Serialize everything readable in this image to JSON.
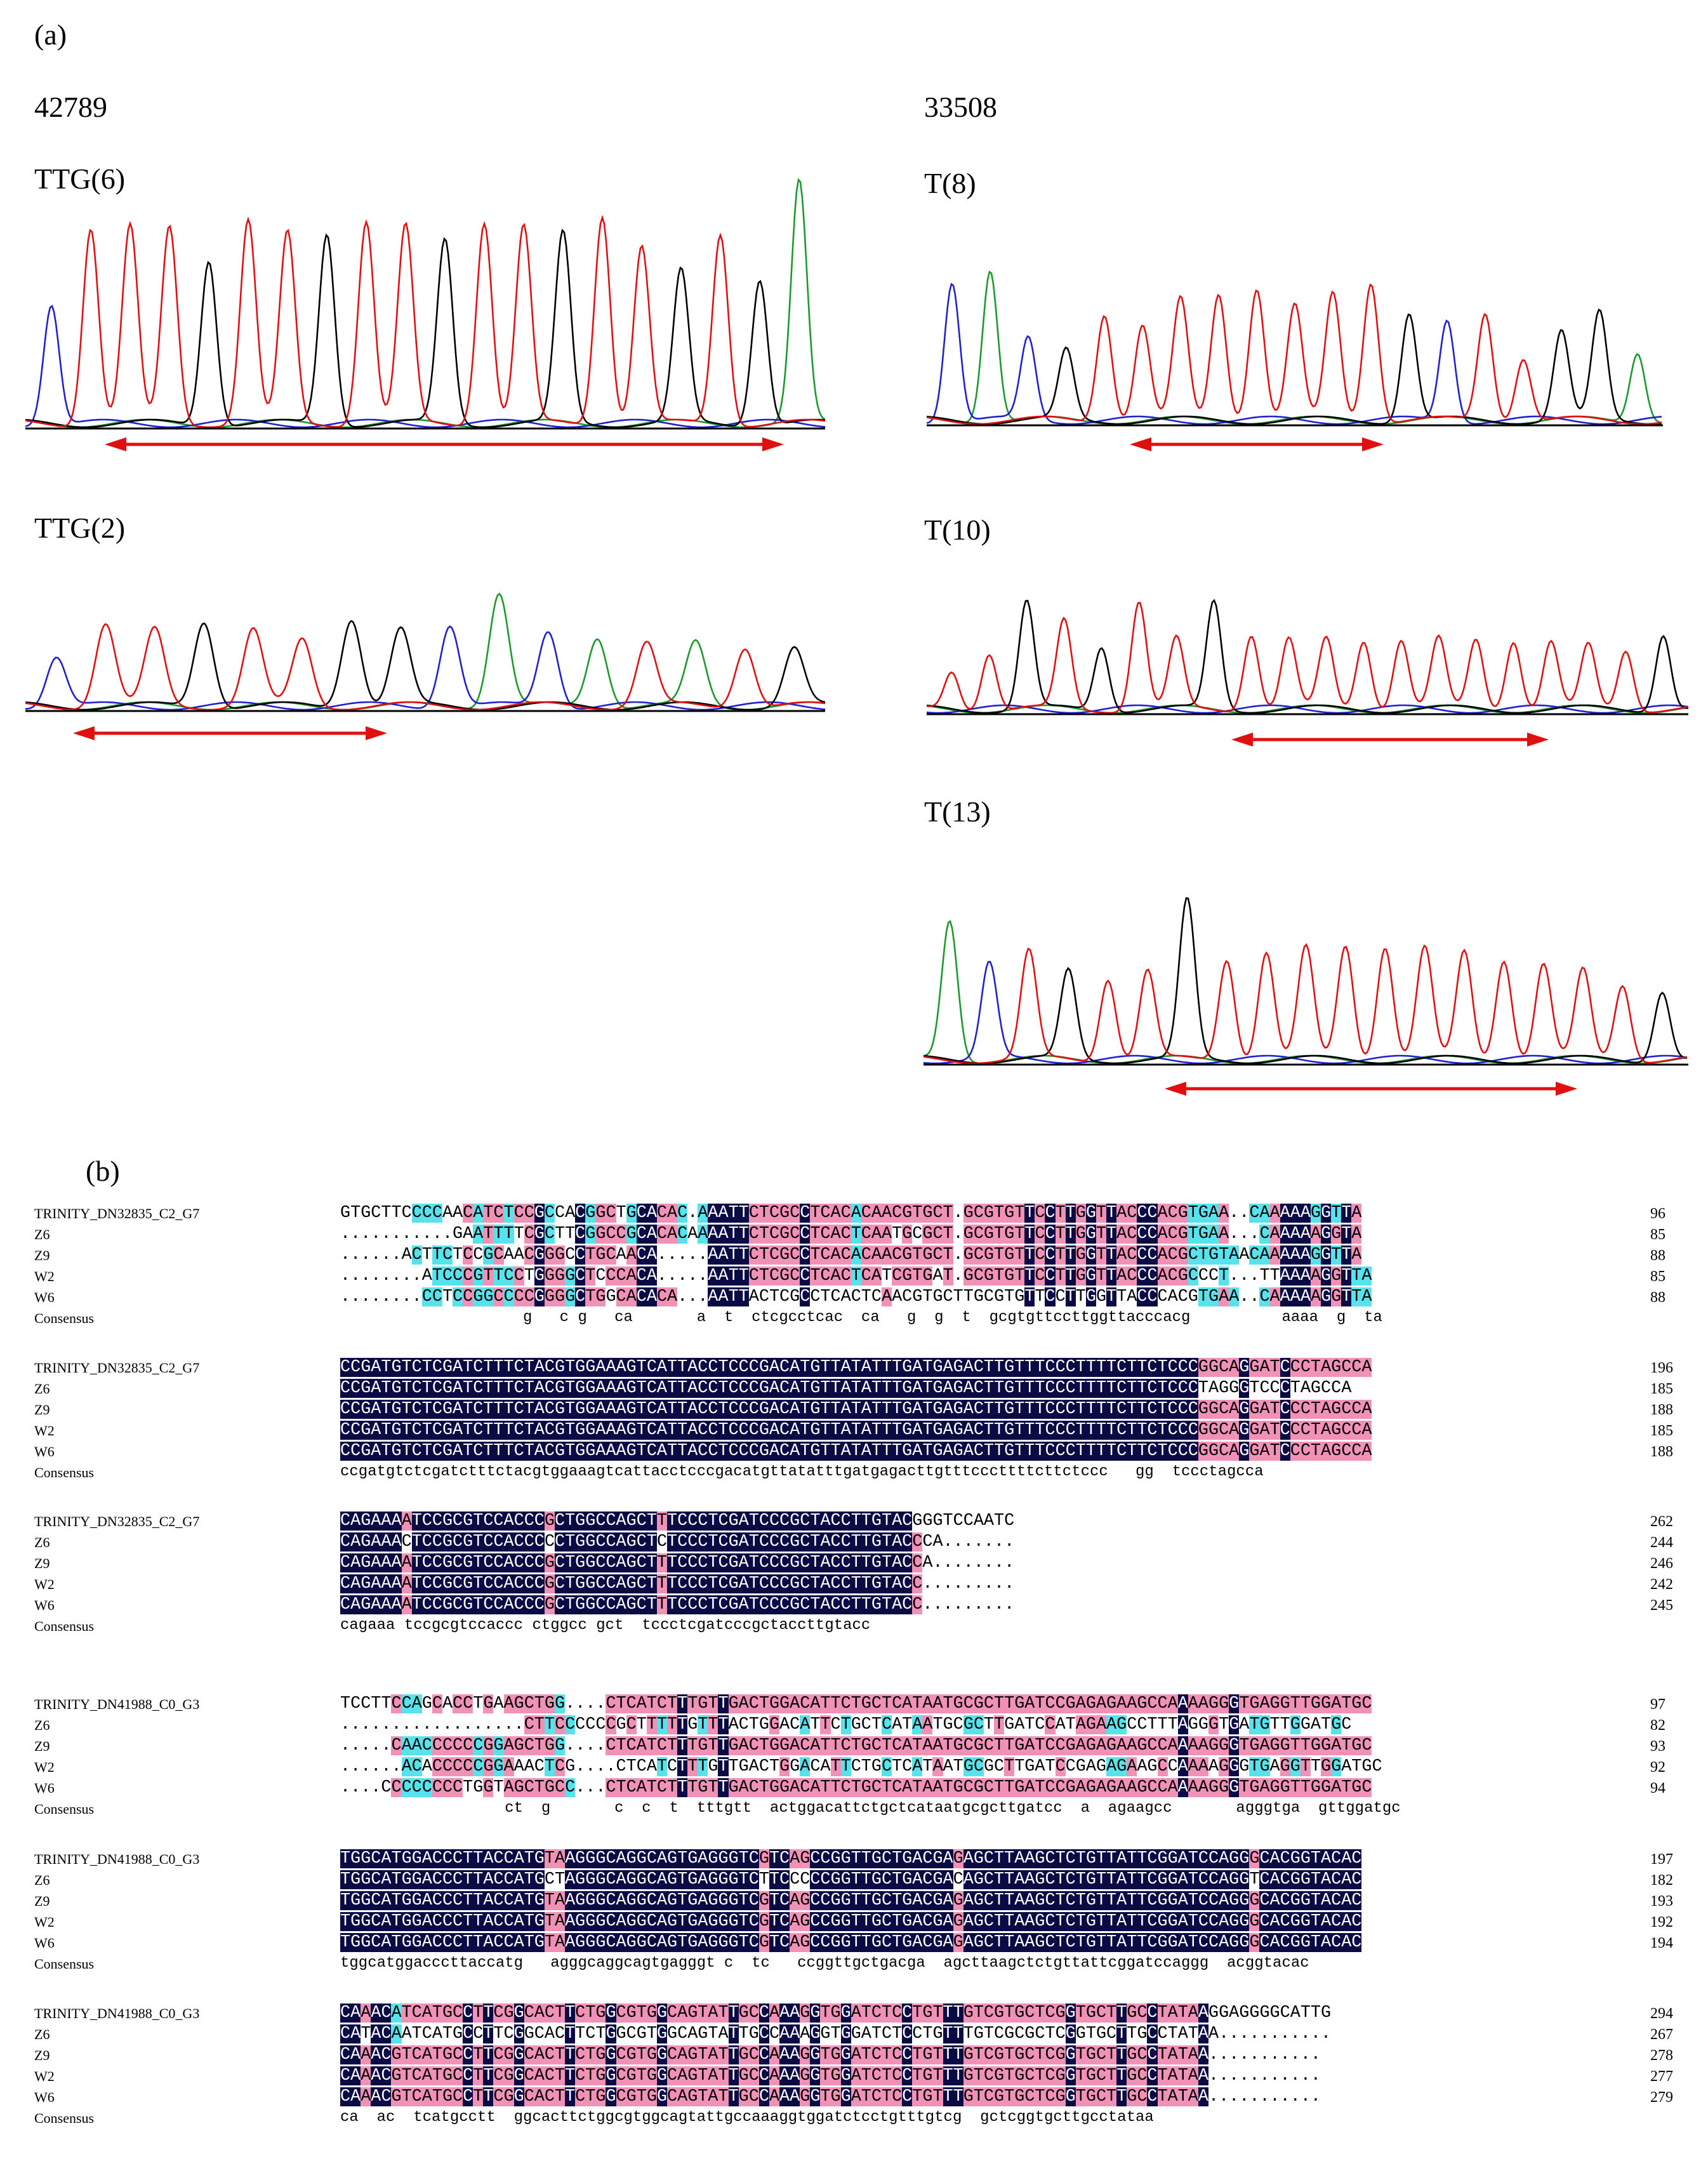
{
  "panel_a": {
    "label": "(a)",
    "left_id": "42789",
    "right_id": "33508",
    "traces": [
      {
        "label": "TTG(6)"
      },
      {
        "label": "TTG(2)"
      },
      {
        "label": "T(8)"
      },
      {
        "label": "T(10)"
      },
      {
        "label": "T(13)"
      }
    ]
  },
  "panel_b": {
    "label": "(b)",
    "blocks": [
      {
        "rows": [
          {
            "name": "TRINITY_DN32835_C2_G7",
            "seq": "GTGCTTCCCCAACATCTCCGCCACGGCTGCACAC.AAATTCTCGCCTCACACAACGTGCT.GCGTGTTCCTTGGTTACCCACGTGAA..CAAAAAGGTTA",
            "num": "96"
          },
          {
            "name": "Z6",
            "seq": "...........GAATTTTCGCTTCGGCCGCACACAAAATTCTCGCCTCACTCAATGCGCT.GCGTGTTCCTTGGTTACCCACGTGAA...CAAAAAGGTA",
            "num": "85"
          },
          {
            "name": "Z9",
            "seq": "......ACTTCTCCGCAACGGGCCTGCAACA.....AATTCTCGCCTCACACAACGTGCT.GCGTGTTCCTTGGTTACCCACGCTGTAACAAAAAGGTTA",
            "num": "88"
          },
          {
            "name": "W2",
            "seq": "........ATCCCGTTCCTGGGGCTCCCACA.....AATTCTCGCCTCACTCATCGTGAT.GCGTGTTCCTTGGTTACCCACGCCCT...TTAAAAGGTTA",
            "num": "85"
          },
          {
            "name": "W6",
            "seq": "........CCTCCGGCCCCGGGGCTGGCACACA...AATTACTCGCCTCACTCAACGTGCTTGCGTGTTCCTTGGTTACCCACGTGAA..CAAAAAGGTTA",
            "num": "88"
          },
          {
            "name": "Consensus",
            "seq": "                    g   c g   ca       a  t  ctcgcctcac  ca   g  g  t  gcgtgttccttggttacccacg          aaaa  g  ta",
            "num": ""
          }
        ]
      },
      {
        "rows": [
          {
            "name": "TRINITY_DN32835_C2_G7",
            "seq": "CCGATGTCTCGATCTTTCTACGTGGAAAGTCATTACCTCCCGACATGTTATATTTGATGAGACTTGTTTCCCTTTTCTTCTCCCGGCAGGATCCCTAGCCA",
            "num": "196"
          },
          {
            "name": "Z6",
            "seq": "CCGATGTCTCGATCTTTCTACGTGGAAAGTCATTACCTCCCGACATGTTATATTTGATGAGACTTGTTTCCCTTTTCTTCTCCCTAGGGTCCCTAGCCA",
            "num": "185"
          },
          {
            "name": "Z9",
            "seq": "CCGATGTCTCGATCTTTCTACGTGGAAAGTCATTACCTCCCGACATGTTATATTTGATGAGACTTGTTTCCCTTTTCTTCTCCCGGCAGGATCCCTAGCCA",
            "num": "188"
          },
          {
            "name": "W2",
            "seq": "CCGATGTCTCGATCTTTCTACGTGGAAAGTCATTACCTCCCGACATGTTATATTTGATGAGACTTGTTTCCCTTTTCTTCTCCCGGCAGGATCCCTAGCCA",
            "num": "185"
          },
          {
            "name": "W6",
            "seq": "CCGATGTCTCGATCTTTCTACGTGGAAAGTCATTACCTCCCGACATGTTATATTTGATGAGACTTGTTTCCCTTTTCTTCTCCCGGCAGGATCCCTAGCCA",
            "num": "188"
          },
          {
            "name": "Consensus",
            "seq": "ccgatgtctcgatctttctacgtggaaagtcattacctcccgacatgttatatttgatgagacttgtttcccttttcttctccc   gg  tccctagcca",
            "num": ""
          }
        ]
      },
      {
        "rows": [
          {
            "name": "TRINITY_DN32835_C2_G7",
            "seq": "CAGAAAATCCGCGTCCACCCGCTGGCCAGCTTTCCCTCGATCCCGCTACCTTGTACGGGTCCAATC",
            "num": "262"
          },
          {
            "name": "Z6",
            "seq": "CAGAAACTCCGCGTCCACCCCCTGGCCAGCTCTCCCTCGATCCCGCTACCTTGTACCCA.......",
            "num": "244"
          },
          {
            "name": "Z9",
            "seq": "CAGAAAATCCGCGTCCACCCGCTGGCCAGCTTTCCCTCGATCCCGCTACCTTGTACCA........",
            "num": "246"
          },
          {
            "name": "W2",
            "seq": "CAGAAAATCCGCGTCCACCCGCTGGCCAGCTTTCCCTCGATCCCGCTACCTTGTACC.........",
            "num": "242"
          },
          {
            "name": "W6",
            "seq": "CAGAAAATCCGCGTCCACCCGCTGGCCAGCTTTCCCTCGATCCCGCTACCTTGTACC.........",
            "num": "245"
          },
          {
            "name": "Consensus",
            "seq": "cagaaa tccgcgtccaccc ctggcc gct  tccctcgatcccgctaccttgtacc",
            "num": ""
          }
        ]
      },
      {
        "rows": [
          {
            "name": "TRINITY_DN41988_C0_G3",
            "seq": "TCCTTCCAGCACCTGAAGCTGG....CTCATCTTTGTTGACTGGACATTCTGCTCATAATGCGCTTGATCCGAGAGAAGCCAAAAGGGTGAGGTTGGATGC",
            "num": "97"
          },
          {
            "name": "Z6",
            "seq": "..................CTTCCCCCCGCTTTTTGTTTACTGGACATTCTGCTCATAATGCGCTTGATCCATAGAAGCCTTTAGGGTGATGTTGGATGC",
            "num": "82"
          },
          {
            "name": "Z9",
            "seq": ".....CAACCCCCCGGAGCTGG....CTCATCTTTGTTGACTGGACATTCTGCTCATAATGCGCTTGATCCGAGAGAAGCCAAAAGGGTGAGGTTGGATGC",
            "num": "93"
          },
          {
            "name": "W2",
            "seq": "......ACACCCCCGGAAACTCG....CTCATCTTTGTTGACTGGACATTCTGCTCATAATGCGCTTGATCCGAGAGAAGCCAAAAGGGTGAGGTTGGATGC",
            "num": "92"
          },
          {
            "name": "W6",
            "seq": "....CCCCCCCCTGGTAGCTGCC...CTCATCTTTGTTGACTGGACATTCTGCTCATAATGCGCTTGATCCGAGAGAAGCCAAAAGGGTGAGGTTGGATGC",
            "num": "94"
          },
          {
            "name": "Consensus",
            "seq": "                  ct  g       c  c  t  tttgtt  actggacattctgctcataatgcgcttgatcc  a  agaagcc       agggtga  gttggatgc",
            "num": ""
          }
        ]
      },
      {
        "rows": [
          {
            "name": "TRINITY_DN41988_C0_G3",
            "seq": "TGGCATGGACCCTTACCATGTAAGGGCAGGCAGTGAGGGTCGTCAGCCGGTTGCTGACGAGAGCTTAAGCTCTGTTATTCGGATCCAGGGCACGGTACAC",
            "num": "197"
          },
          {
            "name": "Z6",
            "seq": "TGGCATGGACCCTTACCATGCTAGGGCAGGCAGTGAGGGTCTTCCCCCGGTTGCTGACGACAGCTTAAGCTCTGTTATTCGGATCCAGGTCACGGTACAC",
            "num": "182"
          },
          {
            "name": "Z9",
            "seq": "TGGCATGGACCCTTACCATGTAAGGGCAGGCAGTGAGGGTCGTCAGCCGGTTGCTGACGAGAGCTTAAGCTCTGTTATTCGGATCCAGGGCACGGTACAC",
            "num": "193"
          },
          {
            "name": "W2",
            "seq": "TGGCATGGACCCTTACCATGTAAGGGCAGGCAGTGAGGGTCGTCAGCCGGTTGCTGACGAGAGCTTAAGCTCTGTTATTCGGATCCAGGGCACGGTACAC",
            "num": "192"
          },
          {
            "name": "W6",
            "seq": "TGGCATGGACCCTTACCATGTAAGGGCAGGCAGTGAGGGTCGTCAGCCGGTTGCTGACGAGAGCTTAAGCTCTGTTATTCGGATCCAGGGCACGGTACAC",
            "num": "194"
          },
          {
            "name": "Consensus",
            "seq": "tggcatggacccttaccatg   agggcaggcagtgagggt c  tc   ccggttgctgacga  agcttaagctctgttattcggatccaggg  acggtacac",
            "num": ""
          }
        ]
      },
      {
        "rows": [
          {
            "name": "TRINITY_DN41988_C0_G3",
            "seq": "CAAACATCATGCCTTCGGCACTTCTGGCGTGGCAGTATTGCCAAAGGTGGATCTCCTGTTTGTCGTGCTCGGTGCTTGCCTATAAGGAGGGGCATTG",
            "num": "294"
          },
          {
            "name": "Z6",
            "seq": "CATACAATCATGCCTTCGGCACTTCTGGCGTGGCAGTATTGCCAAAGGTGGATCTCCTGTTTGTCGCGCTCGGTGCTTGCCTATAA...........",
            "num": "267"
          },
          {
            "name": "Z9",
            "seq": "CAAACGTCATGCCTTCGGCACTTCTGGCGTGGCAGTATTGCCAAAGGTGGATCTCCTGTTTGTCGTGCTCGGTGCTTGCCTATAA...........",
            "num": "278"
          },
          {
            "name": "W2",
            "seq": "CAAACGTCATGCCTTCGGCACTTCTGGCGTGGCAGTATTGCCAAAGGTGGATCTCCTGTTTGTCGTGCTCGGTGCTTGCCTATAA...........",
            "num": "277"
          },
          {
            "name": "W6",
            "seq": "CAAACGTCATGCCTTCGGCACTTCTGGCGTGGCAGTATTGCCAAAGGTGGATCTCCTGTTTGTCGTGCTCGGTGCTTGCCTATAA...........",
            "num": "279"
          },
          {
            "name": "Consensus",
            "seq": "ca  ac  tcatgcctt  ggcacttctggcgtggcagtattgccaaaggtggatctcctgtttgtcg  gctcggtgcttgcctataa",
            "num": ""
          }
        ]
      }
    ]
  }
}
